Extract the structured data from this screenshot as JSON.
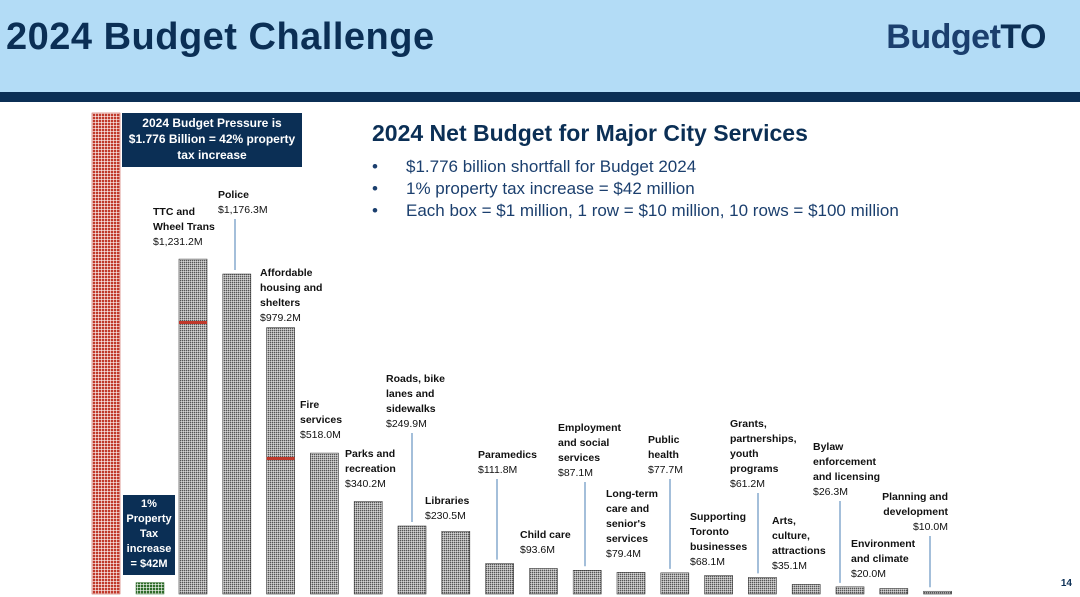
{
  "header": {
    "title": "2024 Budget Challenge",
    "logo_part1": "Budget",
    "logo_part2": "TO"
  },
  "page_number": "14",
  "callouts": {
    "top": [
      "2024 Budget Pressure is",
      "$1.776 Billion = 42% property",
      "tax increase"
    ],
    "bottom": [
      "1%",
      "Property",
      "Tax",
      "increase",
      "= $42M"
    ]
  },
  "colors": {
    "pressure": "#c0392b",
    "tax": "#2f6b2a",
    "service": "#555555",
    "navy": "#0b2f55",
    "header_bg": "#b3dcf6"
  },
  "chart_data": {
    "type": "bar",
    "title": "2024 Net Budget for Major City Services",
    "bullets": [
      "$1.776 billion shortfall for Budget 2024",
      "1% property tax increase = $42 million",
      "Each box = $1 million, 1 row = $10 million, 10 rows = $100 million"
    ],
    "reference_bars": [
      {
        "name": "2024 Budget Pressure",
        "value": 1776,
        "color": "#c0392b"
      },
      {
        "name": "1% Property Tax increase",
        "value": 42,
        "color": "#2f6b2a"
      }
    ],
    "units": "$ millions",
    "services": [
      {
        "label": [
          "TTC and",
          "Wheel Trans"
        ],
        "value_label": "$1,231.2M",
        "value": 1231.2
      },
      {
        "label": [
          "Police"
        ],
        "value_label": "$1,176.3M",
        "value": 1176.3
      },
      {
        "label": [
          "Affordable",
          "housing and",
          "shelters"
        ],
        "value_label": "$979.2M",
        "value": 979.2
      },
      {
        "label": [
          "Fire",
          "services"
        ],
        "value_label": "$518.0M",
        "value": 518.0
      },
      {
        "label": [
          "Parks and",
          "recreation"
        ],
        "value_label": "$340.2M",
        "value": 340.2
      },
      {
        "label": [
          "Roads, bike",
          "lanes and",
          "sidewalks"
        ],
        "value_label": "$249.9M",
        "value": 249.9
      },
      {
        "label": [
          "Libraries"
        ],
        "value_label": "$230.5M",
        "value": 230.5
      },
      {
        "label": [
          "Paramedics"
        ],
        "value_label": "$111.8M",
        "value": 111.8
      },
      {
        "label": [
          "Child care"
        ],
        "value_label": "$93.6M",
        "value": 93.6
      },
      {
        "label": [
          "Employment",
          "and social",
          "services"
        ],
        "value_label": "$87.1M",
        "value": 87.1
      },
      {
        "label": [
          "Long-term",
          "care and",
          "senior's",
          "services"
        ],
        "value_label": "$79.4M",
        "value": 79.4
      },
      {
        "label": [
          "Public",
          "health"
        ],
        "value_label": "$77.7M",
        "value": 77.7
      },
      {
        "label": [
          "Supporting",
          "Toronto",
          "businesses"
        ],
        "value_label": "$68.1M",
        "value": 68.1
      },
      {
        "label": [
          "Grants,",
          "partnerships,",
          "youth",
          "programs"
        ],
        "value_label": "$61.2M",
        "value": 61.2
      },
      {
        "label": [
          "Arts,",
          "culture,",
          "attractions"
        ],
        "value_label": "$35.1M",
        "value": 35.1
      },
      {
        "label": [
          "Bylaw",
          "enforcement",
          "and licensing"
        ],
        "value_label": "$26.3M",
        "value": 26.3
      },
      {
        "label": [
          "Environment",
          "and climate"
        ],
        "value_label": "$20.0M",
        "value": 20.0
      },
      {
        "label": [
          "Planning and",
          "development"
        ],
        "value_label": "$10.0M",
        "value": 10.0
      }
    ],
    "tax_increase_markers": [
      {
        "service_index": 0,
        "value": 1000
      },
      {
        "service_index": 2,
        "value": 500
      }
    ]
  }
}
